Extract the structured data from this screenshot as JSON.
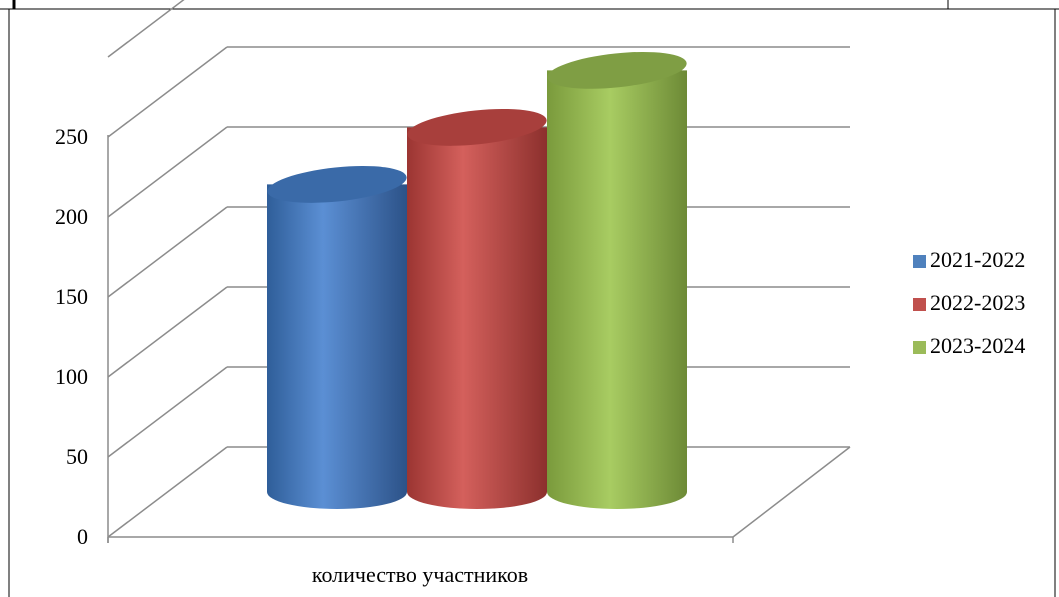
{
  "chart_data": {
    "type": "bar",
    "style": "3d-cylinder",
    "categories": [
      "количество участников"
    ],
    "series": [
      {
        "name": "2021-2022",
        "values": [
          178
        ],
        "color": "#4F81BD"
      },
      {
        "name": "2022-2023",
        "values": [
          211
        ],
        "color": "#C0504D"
      },
      {
        "name": "2023-2024",
        "values": [
          244
        ],
        "color": "#9BBB59"
      }
    ],
    "yticks": [
      "0",
      "50",
      "100",
      "150",
      "200",
      "250"
    ],
    "ylim": [
      0,
      300
    ],
    "grid": true,
    "legend_position": "right"
  }
}
